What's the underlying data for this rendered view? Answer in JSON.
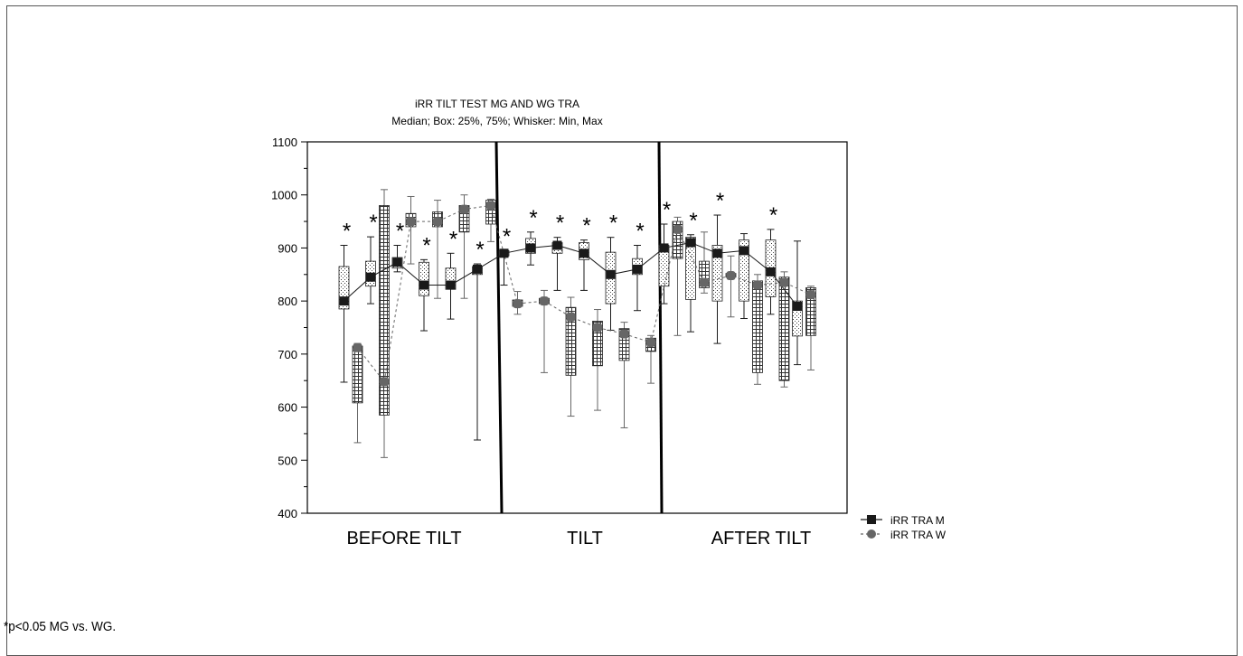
{
  "footnote": "*p<0.05 MG vs. WG.",
  "chart_data": {
    "type": "box",
    "title": "iRR TILT TEST MG AND WG TRA",
    "subtitle": "Median;  Box: 25%, 75%;  Whisker: Min, Max",
    "ylim": [
      400,
      1100
    ],
    "yticks": [
      "400",
      "500",
      "600",
      "700",
      "800",
      "900",
      "1000",
      "1100"
    ],
    "sections": [
      "BEFORE TILT",
      "TILT",
      "AFTER TILT"
    ],
    "significance_marker": "*",
    "legend": {
      "placement": "right",
      "items": [
        "iRR TRA M",
        "iRR TRA W"
      ]
    },
    "series": [
      {
        "name": "iRR TRA M",
        "color": "#1a1a1a",
        "points": [
          {
            "median": 800,
            "q1": 785,
            "q3": 865,
            "min": 647,
            "max": 905
          },
          {
            "median": 845,
            "q1": 828,
            "q3": 875,
            "min": 795,
            "max": 921
          },
          {
            "median": 873,
            "q1": 862,
            "q3": 882,
            "min": 855,
            "max": 905
          },
          {
            "median": 830,
            "q1": 810,
            "q3": 873,
            "min": 744,
            "max": 878
          },
          {
            "median": 830,
            "q1": 822,
            "q3": 862,
            "min": 766,
            "max": 890
          },
          {
            "median": 860,
            "q1": 850,
            "q3": 865,
            "min": 538,
            "max": 870
          },
          {
            "median": 890,
            "q1": 885,
            "q3": 895,
            "min": 830,
            "max": 895
          },
          {
            "median": 900,
            "q1": 890,
            "q3": 918,
            "min": 868,
            "max": 930
          },
          {
            "median": 905,
            "q1": 890,
            "q3": 910,
            "min": 820,
            "max": 920
          },
          {
            "median": 890,
            "q1": 878,
            "q3": 910,
            "min": 820,
            "max": 915
          },
          {
            "median": 850,
            "q1": 795,
            "q3": 892,
            "min": 745,
            "max": 920
          },
          {
            "median": 860,
            "q1": 850,
            "q3": 880,
            "min": 782,
            "max": 905
          },
          {
            "median": 900,
            "q1": 828,
            "q3": 905,
            "min": 795,
            "max": 945
          },
          {
            "median": 910,
            "q1": 803,
            "q3": 920,
            "min": 742,
            "max": 925
          },
          {
            "median": 890,
            "q1": 800,
            "q3": 905,
            "min": 720,
            "max": 962
          },
          {
            "median": 895,
            "q1": 800,
            "q3": 915,
            "min": 767,
            "max": 927
          },
          {
            "median": 855,
            "q1": 808,
            "q3": 915,
            "min": 775,
            "max": 935
          },
          {
            "median": 790,
            "q1": 734,
            "q3": 800,
            "min": 680,
            "max": 913
          }
        ],
        "significant": [
          true,
          true,
          true,
          true,
          true,
          true,
          true,
          true,
          true,
          true,
          true,
          true,
          true,
          true,
          true,
          false,
          true,
          false
        ]
      },
      {
        "name": "iRR TRA W",
        "color": "#666666",
        "points": [
          {
            "median": 712,
            "q1": 608,
            "q3": 715,
            "min": 533,
            "max": 720
          },
          {
            "median": 648,
            "q1": 585,
            "q3": 980,
            "min": 505,
            "max": 1010
          },
          {
            "median": 950,
            "q1": 940,
            "q3": 965,
            "min": 870,
            "max": 997
          },
          {
            "median": 950,
            "q1": 940,
            "q3": 968,
            "min": 805,
            "max": 990
          },
          {
            "median": 973,
            "q1": 930,
            "q3": 980,
            "min": 805,
            "max": 1000
          },
          {
            "median": 980,
            "q1": 945,
            "q3": 990,
            "min": 912,
            "max": 992
          },
          {
            "median": 795,
            "q1": 790,
            "q3": 802,
            "min": 775,
            "max": 818
          },
          {
            "median": 800,
            "q1": 795,
            "q3": 805,
            "min": 665,
            "max": 820
          },
          {
            "median": 770,
            "q1": 660,
            "q3": 788,
            "min": 583,
            "max": 807
          },
          {
            "median": 750,
            "q1": 678,
            "q3": 762,
            "min": 594,
            "max": 784
          },
          {
            "median": 738,
            "q1": 688,
            "q3": 748,
            "min": 561,
            "max": 760
          },
          {
            "median": 722,
            "q1": 705,
            "q3": 730,
            "min": 645,
            "max": 735
          },
          {
            "median": 935,
            "q1": 880,
            "q3": 950,
            "min": 735,
            "max": 958
          },
          {
            "median": 835,
            "q1": 825,
            "q3": 875,
            "min": 815,
            "max": 930
          },
          {
            "median": 848,
            "q1": 845,
            "q3": 852,
            "min": 770,
            "max": 885
          },
          {
            "median": 830,
            "q1": 665,
            "q3": 838,
            "min": 643,
            "max": 850
          },
          {
            "median": 835,
            "q1": 650,
            "q3": 845,
            "min": 638,
            "max": 855
          },
          {
            "median": 812,
            "q1": 735,
            "q3": 825,
            "min": 670,
            "max": 828
          }
        ]
      }
    ]
  }
}
